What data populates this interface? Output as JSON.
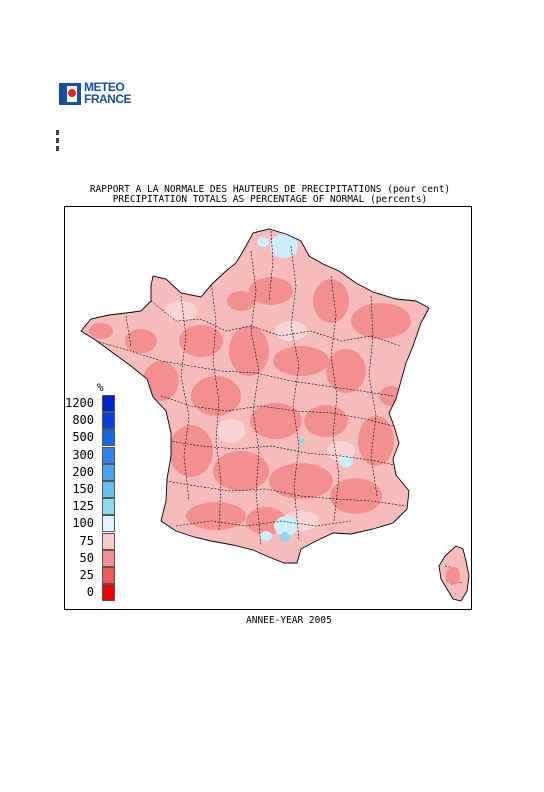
{
  "logo": {
    "line1": "METEO",
    "line2": "FRANCE",
    "icon": "meteo-france-logo-icon"
  },
  "title": {
    "fr": "RAPPORT A LA NORMALE DES HAUTEURS DE PRECIPITATIONS (pour cent)",
    "en": "PRECIPITATION TOTALS AS PERCENTAGE OF NORMAL (percents)"
  },
  "legend": {
    "unit": "%",
    "classes": [
      {
        "label": "1200",
        "color": "#0022cc"
      },
      {
        "label": "800",
        "color": "#0a3fdd"
      },
      {
        "label": "500",
        "color": "#1d63e6"
      },
      {
        "label": "300",
        "color": "#2f86e8"
      },
      {
        "label": "200",
        "color": "#4aa2ec"
      },
      {
        "label": "150",
        "color": "#69bdf0"
      },
      {
        "label": "125",
        "color": "#8fd8f2"
      },
      {
        "label": "100",
        "color": "#dff5fb"
      },
      {
        "label": "75",
        "color": "#f9cccc"
      },
      {
        "label": "50",
        "color": "#f28f8f"
      },
      {
        "label": "25",
        "color": "#ee5a5a"
      },
      {
        "label": "0",
        "color": "#ee0000"
      }
    ]
  },
  "map": {
    "region": "France (departements) and Corsica",
    "dominant_class": "50-75",
    "colors": {
      "dry": "#f28f8f",
      "near_normal": "#f9cccc",
      "wet": "#cdeefb",
      "wetter": "#8fd8f2",
      "border": "#000000"
    }
  },
  "caption": "ANNEE-YEAR 2005"
}
